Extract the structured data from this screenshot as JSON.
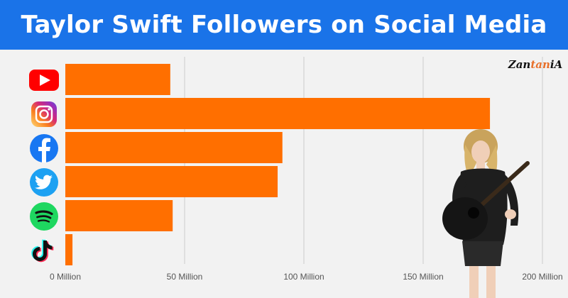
{
  "header": {
    "title": "Taylor Swift Followers on Social Media"
  },
  "logo": {
    "text_a": "Zan",
    "text_b": "tan",
    "text_c": "iA"
  },
  "colors": {
    "header_bg": "#1a73e8",
    "bar": "#ff6f00",
    "grid": "#cccccc",
    "background": "#f2f2f2"
  },
  "chart_data": {
    "type": "bar",
    "orientation": "horizontal",
    "title": "Taylor Swift Followers on Social Media",
    "categories": [
      "YouTube",
      "Instagram",
      "Facebook",
      "Twitter",
      "Spotify",
      "TikTok"
    ],
    "category_icons": [
      "youtube-icon",
      "instagram-icon",
      "facebook-icon",
      "twitter-icon",
      "spotify-icon",
      "tiktok-icon"
    ],
    "values": [
      44,
      178,
      91,
      89,
      45,
      3
    ],
    "unit": "Million",
    "xlim": [
      0,
      200
    ],
    "xticks": [
      0,
      50,
      100,
      150,
      200
    ],
    "xtick_labels": [
      "0 Million",
      "50 Million",
      "100 Million",
      "150 Million",
      "200 Million"
    ],
    "grid": "vertical",
    "legend": "none"
  }
}
